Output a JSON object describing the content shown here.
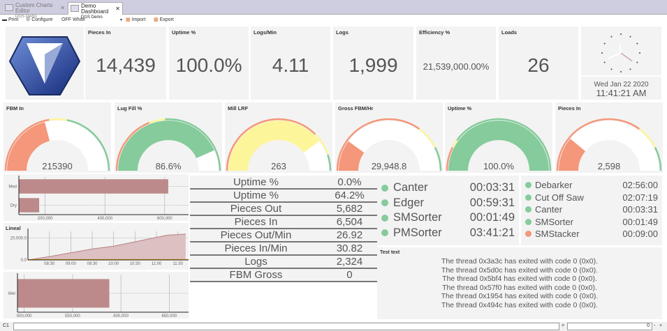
{
  "tabs": [
    {
      "label": "Custom Charts Editor",
      "sub": "DGS Demo",
      "active": false
    },
    {
      "label": "Demo Dashboard",
      "sub": "DGS Demo",
      "active": true
    }
  ],
  "toolbar": {
    "print": "Print",
    "configure": "Configure",
    "theme": "OFF White",
    "import": "Import",
    "export": "Export"
  },
  "tiles": [
    {
      "title": "Pieces In",
      "value": "14,439"
    },
    {
      "title": "Uptime %",
      "value": "100.0%"
    },
    {
      "title": "Logs/Min",
      "value": "4.11"
    },
    {
      "title": "Logs",
      "value": "1,999"
    },
    {
      "title": "Efficiency %",
      "value": "21,539,000.00%"
    },
    {
      "title": "Loads",
      "value": "26"
    }
  ],
  "clock": {
    "date": "Wed Jan 22 2020",
    "time": "11:41:21 AM",
    "hour": 11,
    "minute": 41,
    "second": 21
  },
  "colors": {
    "red": "#f4977a",
    "yellow": "#fdf59a",
    "green": "#85cb9b",
    "bar": "#bc8a8a",
    "area": "#dcc0c2",
    "line": "#b77f82"
  },
  "gauges": [
    {
      "title": "FBM In",
      "value": "215390",
      "fill": 0.42,
      "fill_color": "red",
      "zones": [
        [
          "red",
          0.45
        ],
        [
          "yellow",
          0.56
        ],
        [
          "green",
          1
        ]
      ]
    },
    {
      "title": "Lug Fill %",
      "value": "86.6%",
      "fill": 0.866,
      "fill_color": "green",
      "zones": [
        [
          "red",
          0.38
        ],
        [
          "yellow",
          0.48
        ],
        [
          "green",
          1
        ]
      ]
    },
    {
      "title": "Mill LRF",
      "value": "263",
      "fill": 0.8,
      "fill_color": "yellow",
      "zones": [
        [
          "red",
          0.75
        ],
        [
          "yellow",
          0.9
        ],
        [
          "green",
          1
        ]
      ]
    },
    {
      "title": "Gross FBM/Hr",
      "value": "29,948.8",
      "fill": 0.2,
      "fill_color": "red",
      "zones": [
        [
          "red",
          0.7
        ],
        [
          "yellow",
          0.85
        ],
        [
          "green",
          1
        ]
      ]
    },
    {
      "title": "Uptime %",
      "value": "100.0%",
      "fill": 1,
      "fill_color": "green",
      "zones": [
        [
          "red",
          0.15
        ],
        [
          "yellow",
          0.2
        ],
        [
          "green",
          1
        ]
      ]
    },
    {
      "title": "Pieces In",
      "value": "2,598",
      "fill": 0.22,
      "fill_color": "red",
      "zones": [
        [
          "red",
          0.7
        ],
        [
          "yellow",
          0.85
        ],
        [
          "green",
          1
        ]
      ]
    }
  ],
  "chart_data": [
    {
      "type": "bar",
      "orientation": "horizontal",
      "categories": [
        "Med",
        "Dry"
      ],
      "values": [
        612000,
        180000
      ],
      "xlim": [
        112000,
        680000
      ],
      "xticks": [
        "200,000",
        "400,000",
        "600,000"
      ],
      "xtick_values": [
        200000,
        400000,
        600000
      ],
      "grid": true
    },
    {
      "type": "area",
      "title": "Lineal",
      "x": [
        "08:00",
        "08:30",
        "09:00",
        "09:30",
        "10:00",
        "10:30",
        "11:00",
        "11:15",
        "11:41"
      ],
      "values": [
        0,
        3000,
        6500,
        10000,
        12500,
        16500,
        20500,
        22500,
        23500
      ],
      "xticks": [
        "08:30",
        "09:00",
        "09:30",
        "10:00",
        "10:30",
        "11:00",
        "11:30"
      ],
      "yticks": [
        "0.0",
        "20,000.0"
      ],
      "ylim": [
        0,
        26000
      ],
      "grid": true
    },
    {
      "type": "bar",
      "orientation": "horizontal",
      "categories": [
        "Wet"
      ],
      "values": [
        588000
      ],
      "xlim": [
        493000,
        670000
      ],
      "xticks": [
        "500,000",
        "550,000",
        "600,000",
        "650,000"
      ],
      "xtick_values": [
        500000,
        550000,
        600000,
        650000
      ],
      "grid": true
    }
  ],
  "kv_table": [
    [
      "Uptime %",
      "0.0%"
    ],
    [
      "Uptime %",
      "64.2%"
    ],
    [
      "Pieces Out",
      "5,682"
    ],
    [
      "Pieces In",
      "6,504"
    ],
    [
      "Pieces Out/Min",
      "26.92"
    ],
    [
      "Pieces In/Min",
      "30.82"
    ],
    [
      "Logs",
      "2,324"
    ],
    [
      "FBM Gross",
      "0"
    ]
  ],
  "status_list_1": [
    {
      "name": "Canter",
      "time": "00:03:31",
      "status": "green"
    },
    {
      "name": "Edger",
      "time": "00:59:31",
      "status": "green"
    },
    {
      "name": "SMSorter",
      "time": "00:01:49",
      "status": "green"
    },
    {
      "name": "PMSorter",
      "time": "03:41:21",
      "status": "green"
    }
  ],
  "status_list_2": [
    {
      "name": "Debarker",
      "time": "02:56:00",
      "status": "green"
    },
    {
      "name": "Cut Off Saw",
      "time": "02:07:19",
      "status": "green"
    },
    {
      "name": "Canter",
      "time": "00:03:31",
      "status": "green"
    },
    {
      "name": "SMSorter",
      "time": "00:01:49",
      "status": "green"
    },
    {
      "name": "SMStacker",
      "time": "00:09:00",
      "status": "red"
    }
  ],
  "text_panel": {
    "title": "Test text",
    "lines": [
      "The thread 0x3a3c has exited with code 0 (0x0).",
      "The thread 0x5d0c has exited with code 0 (0x0).",
      "The thread 0x5bf4 has exited with code 0 (0x0).",
      "The thread 0x57f0 has exited with code 0 (0x0).",
      "The thread 0x1954 has exited with code 0 (0x0).",
      "The thread 0x494c has exited with code 0 (0x0)."
    ]
  },
  "formula_bar": {
    "cell": "C1",
    "formula": "",
    "equals": "=",
    "result": "0",
    "minus": "-",
    "plus": "+"
  }
}
